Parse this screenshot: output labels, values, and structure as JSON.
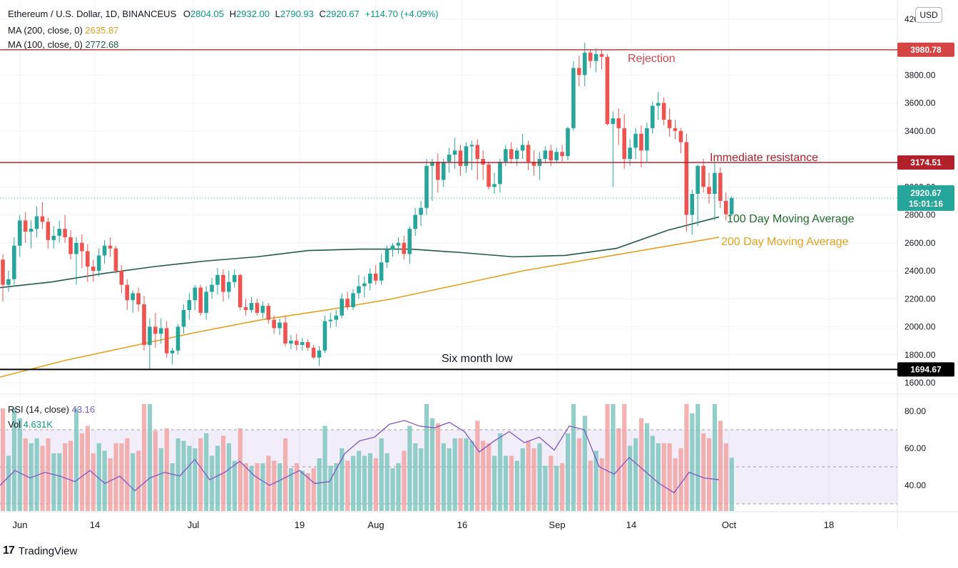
{
  "header": {
    "symbol": "Ethereum / U.S. Dollar, 1D, BINANCEUS",
    "o_label": "O",
    "o_value": "2804.05",
    "h_label": "H",
    "h_value": "2932.00",
    "l_label": "L",
    "l_value": "2790.93",
    "c_label": "C",
    "c_value": "2920.67",
    "change": "+114.70 (+4.09%)",
    "ma200_label": "MA (200, close, 0)",
    "ma200_value": "2635.87",
    "ma100_label": "MA (100, close, 0)",
    "ma100_value": "2772.68",
    "currency": "USD"
  },
  "rsi_panel": {
    "rsi_label": "RSI (14, close)",
    "rsi_value": "43.16",
    "vol_label": "Vol",
    "vol_value": "4.631K"
  },
  "brand": {
    "logo": "17",
    "name": "TradingView"
  },
  "colors": {
    "up": "#26a69a",
    "down": "#ef5350",
    "ma100": "#1f5a4b",
    "ma200": "#e6a11c",
    "rsi": "#7e57c2",
    "line_red": "#b2202b"
  },
  "chart_data": {
    "type": "candlestick",
    "price_axis": {
      "ticks": [
        1600,
        1800,
        2000,
        2200,
        2400,
        2600,
        2800,
        3000,
        3200,
        3400,
        3600,
        3800,
        4000,
        4200
      ],
      "tick_labels": [
        "1600.00",
        "1800.00",
        "2000.00",
        "2200.00",
        "2400.00",
        "2600.00",
        "2800.00",
        "3000.00",
        "3200.00",
        "3400.00",
        "3600.00",
        "3800.00",
        "4000.00",
        "4200.00"
      ],
      "range": [
        1560,
        4290
      ]
    },
    "time_axis": {
      "labels": [
        "Jun",
        "14",
        "Jul",
        "19",
        "Aug",
        "16",
        "Sep",
        "14",
        "Oct",
        "18"
      ]
    },
    "ohlc": [
      [
        2480,
        2520,
        2180,
        2300
      ],
      [
        2300,
        2400,
        2250,
        2340
      ],
      [
        2340,
        2640,
        2300,
        2580
      ],
      [
        2580,
        2800,
        2500,
        2760
      ],
      [
        2760,
        2820,
        2600,
        2680
      ],
      [
        2680,
        2760,
        2560,
        2700
      ],
      [
        2700,
        2860,
        2640,
        2790
      ],
      [
        2790,
        2890,
        2700,
        2750
      ],
      [
        2750,
        2780,
        2560,
        2620
      ],
      [
        2620,
        2720,
        2560,
        2650
      ],
      [
        2650,
        2760,
        2600,
        2700
      ],
      [
        2700,
        2800,
        2600,
        2640
      ],
      [
        2640,
        2690,
        2480,
        2520
      ],
      [
        2520,
        2640,
        2300,
        2600
      ],
      [
        2600,
        2660,
        2420,
        2540
      ],
      [
        2540,
        2590,
        2320,
        2430
      ],
      [
        2430,
        2480,
        2320,
        2400
      ],
      [
        2400,
        2560,
        2360,
        2510
      ],
      [
        2510,
        2620,
        2450,
        2580
      ],
      [
        2580,
        2640,
        2500,
        2560
      ],
      [
        2560,
        2580,
        2380,
        2400
      ],
      [
        2400,
        2440,
        2240,
        2300
      ],
      [
        2300,
        2340,
        2120,
        2190
      ],
      [
        2190,
        2260,
        2100,
        2240
      ],
      [
        2240,
        2280,
        2110,
        2160
      ],
      [
        2160,
        2220,
        1830,
        1870
      ],
      [
        1870,
        2060,
        1700,
        2000
      ],
      [
        2000,
        2100,
        1850,
        1950
      ],
      [
        1950,
        2060,
        1880,
        1990
      ],
      [
        1990,
        2040,
        1780,
        1810
      ],
      [
        1810,
        1850,
        1730,
        1830
      ],
      [
        1830,
        2020,
        1800,
        2000
      ],
      [
        2000,
        2160,
        1950,
        2120
      ],
      [
        2120,
        2240,
        2050,
        2190
      ],
      [
        2190,
        2300,
        2120,
        2280
      ],
      [
        2280,
        2300,
        2080,
        2100
      ],
      [
        2100,
        2290,
        2050,
        2250
      ],
      [
        2250,
        2350,
        2200,
        2300
      ],
      [
        2300,
        2420,
        2230,
        2370
      ],
      [
        2370,
        2410,
        2180,
        2250
      ],
      [
        2250,
        2400,
        2200,
        2320
      ],
      [
        2320,
        2410,
        2280,
        2370
      ],
      [
        2370,
        2380,
        2120,
        2140
      ],
      [
        2140,
        2200,
        2080,
        2120
      ],
      [
        2120,
        2210,
        2100,
        2170
      ],
      [
        2170,
        2200,
        2080,
        2100
      ],
      [
        2100,
        2180,
        2060,
        2150
      ],
      [
        2150,
        2170,
        2020,
        2050
      ],
      [
        2050,
        2080,
        1950,
        1990
      ],
      [
        1990,
        2060,
        1940,
        2030
      ],
      [
        2030,
        2080,
        1860,
        1880
      ],
      [
        1880,
        1940,
        1840,
        1900
      ],
      [
        1900,
        1950,
        1830,
        1870
      ],
      [
        1870,
        1920,
        1830,
        1890
      ],
      [
        1890,
        1910,
        1830,
        1850
      ],
      [
        1850,
        1870,
        1770,
        1780
      ],
      [
        1780,
        1860,
        1720,
        1830
      ],
      [
        1830,
        2080,
        1810,
        2040
      ],
      [
        2040,
        2100,
        1990,
        2050
      ],
      [
        2050,
        2120,
        2000,
        2080
      ],
      [
        2080,
        2240,
        2060,
        2200
      ],
      [
        2200,
        2250,
        2120,
        2140
      ],
      [
        2140,
        2270,
        2120,
        2240
      ],
      [
        2240,
        2370,
        2200,
        2290
      ],
      [
        2290,
        2360,
        2210,
        2310
      ],
      [
        2310,
        2420,
        2260,
        2380
      ],
      [
        2380,
        2440,
        2300,
        2330
      ],
      [
        2330,
        2520,
        2300,
        2460
      ],
      [
        2460,
        2580,
        2420,
        2550
      ],
      [
        2550,
        2600,
        2500,
        2580
      ],
      [
        2580,
        2640,
        2520,
        2600
      ],
      [
        2600,
        2650,
        2480,
        2520
      ],
      [
        2520,
        2720,
        2450,
        2700
      ],
      [
        2700,
        2850,
        2650,
        2800
      ],
      [
        2800,
        2900,
        2720,
        2850
      ],
      [
        2850,
        3200,
        2800,
        3150
      ],
      [
        3150,
        3200,
        2900,
        3180
      ],
      [
        3180,
        3240,
        2960,
        3050
      ],
      [
        3050,
        3200,
        3000,
        3180
      ],
      [
        3180,
        3280,
        3100,
        3230
      ],
      [
        3230,
        3350,
        3130,
        3260
      ],
      [
        3260,
        3300,
        3080,
        3150
      ],
      [
        3150,
        3320,
        3100,
        3290
      ],
      [
        3290,
        3330,
        3120,
        3300
      ],
      [
        3300,
        3340,
        3050,
        3200
      ],
      [
        3200,
        3260,
        3050,
        3160
      ],
      [
        3160,
        3180,
        2980,
        3000
      ],
      [
        3000,
        3100,
        2950,
        3020
      ],
      [
        3020,
        3200,
        2960,
        3180
      ],
      [
        3180,
        3300,
        3150,
        3270
      ],
      [
        3270,
        3320,
        3170,
        3200
      ],
      [
        3200,
        3280,
        3150,
        3260
      ],
      [
        3260,
        3380,
        3200,
        3300
      ],
      [
        3300,
        3330,
        3120,
        3180
      ],
      [
        3180,
        3260,
        3080,
        3150
      ],
      [
        3150,
        3250,
        3050,
        3200
      ],
      [
        3200,
        3290,
        3180,
        3260
      ],
      [
        3260,
        3300,
        3150,
        3190
      ],
      [
        3190,
        3280,
        3170,
        3250
      ],
      [
        3250,
        3300,
        3180,
        3220
      ],
      [
        3220,
        3430,
        3190,
        3420
      ],
      [
        3420,
        3900,
        3400,
        3850
      ],
      [
        3850,
        3940,
        3720,
        3800
      ],
      [
        3800,
        4030,
        3720,
        3960
      ],
      [
        3960,
        3980,
        3850,
        3900
      ],
      [
        3900,
        3990,
        3820,
        3950
      ],
      [
        3950,
        3980,
        3840,
        3930
      ],
      [
        3930,
        3950,
        3440,
        3450
      ],
      [
        3450,
        3540,
        3000,
        3490
      ],
      [
        3490,
        3560,
        3300,
        3420
      ],
      [
        3420,
        3520,
        3130,
        3200
      ],
      [
        3200,
        3340,
        3150,
        3280
      ],
      [
        3280,
        3420,
        3200,
        3380
      ],
      [
        3380,
        3440,
        3140,
        3260
      ],
      [
        3260,
        3460,
        3180,
        3420
      ],
      [
        3420,
        3610,
        3380,
        3580
      ],
      [
        3580,
        3680,
        3480,
        3600
      ],
      [
        3600,
        3640,
        3440,
        3480
      ],
      [
        3480,
        3560,
        3360,
        3420
      ],
      [
        3420,
        3480,
        3340,
        3400
      ],
      [
        3400,
        3420,
        3240,
        3320
      ],
      [
        3320,
        3380,
        2680,
        2800
      ],
      [
        2800,
        2980,
        2660,
        2950
      ],
      [
        2950,
        3160,
        2720,
        3150
      ],
      [
        3150,
        3200,
        2960,
        3000
      ],
      [
        3000,
        3100,
        2880,
        2950
      ],
      [
        2950,
        3180,
        2760,
        3100
      ],
      [
        3100,
        3140,
        2850,
        2900
      ],
      [
        2900,
        2960,
        2760,
        2804
      ],
      [
        2804,
        2932,
        2790,
        2920
      ]
    ],
    "ma100": [
      2280,
      2320,
      2380,
      2430,
      2470,
      2500,
      2545,
      2555,
      2555,
      2530,
      2500,
      2510,
      2560,
      2690,
      2785
    ],
    "ma200": [
      1640,
      1760,
      1860,
      1960,
      2050,
      2120,
      2200,
      2300,
      2400,
      2480,
      2560,
      2640
    ],
    "rsi": [
      40,
      48,
      44,
      47,
      45,
      42,
      48,
      41,
      45,
      37,
      44,
      47,
      45,
      54,
      43,
      47,
      53,
      45,
      40,
      44,
      48,
      41,
      42,
      57,
      64,
      66,
      73,
      75,
      72,
      71,
      74,
      69,
      58,
      64,
      69,
      63,
      66,
      59,
      72,
      70,
      50,
      46,
      55,
      48,
      41,
      36,
      47,
      44,
      43
    ],
    "rsi_levels": [
      30,
      50,
      70
    ],
    "rsi_axis": {
      "ticks": [
        "40.00",
        "60.00",
        "80.00"
      ]
    },
    "annotations": {
      "rejection": {
        "label": "Rejection",
        "price": 3980.78,
        "price_label": "3980.78"
      },
      "resistance": {
        "label": "Immediate resistance",
        "price": 3174.51,
        "price_label": "3174.51"
      },
      "low": {
        "label": "Six month low",
        "price": 1694.67,
        "price_label": "1694.67"
      },
      "last": {
        "price": 2920.67,
        "price_label": "2920.67",
        "countdown": "15:01:16"
      },
      "ma100_label": "100 Day Moving Average",
      "ma200_label": "200 Day Moving Average"
    }
  }
}
